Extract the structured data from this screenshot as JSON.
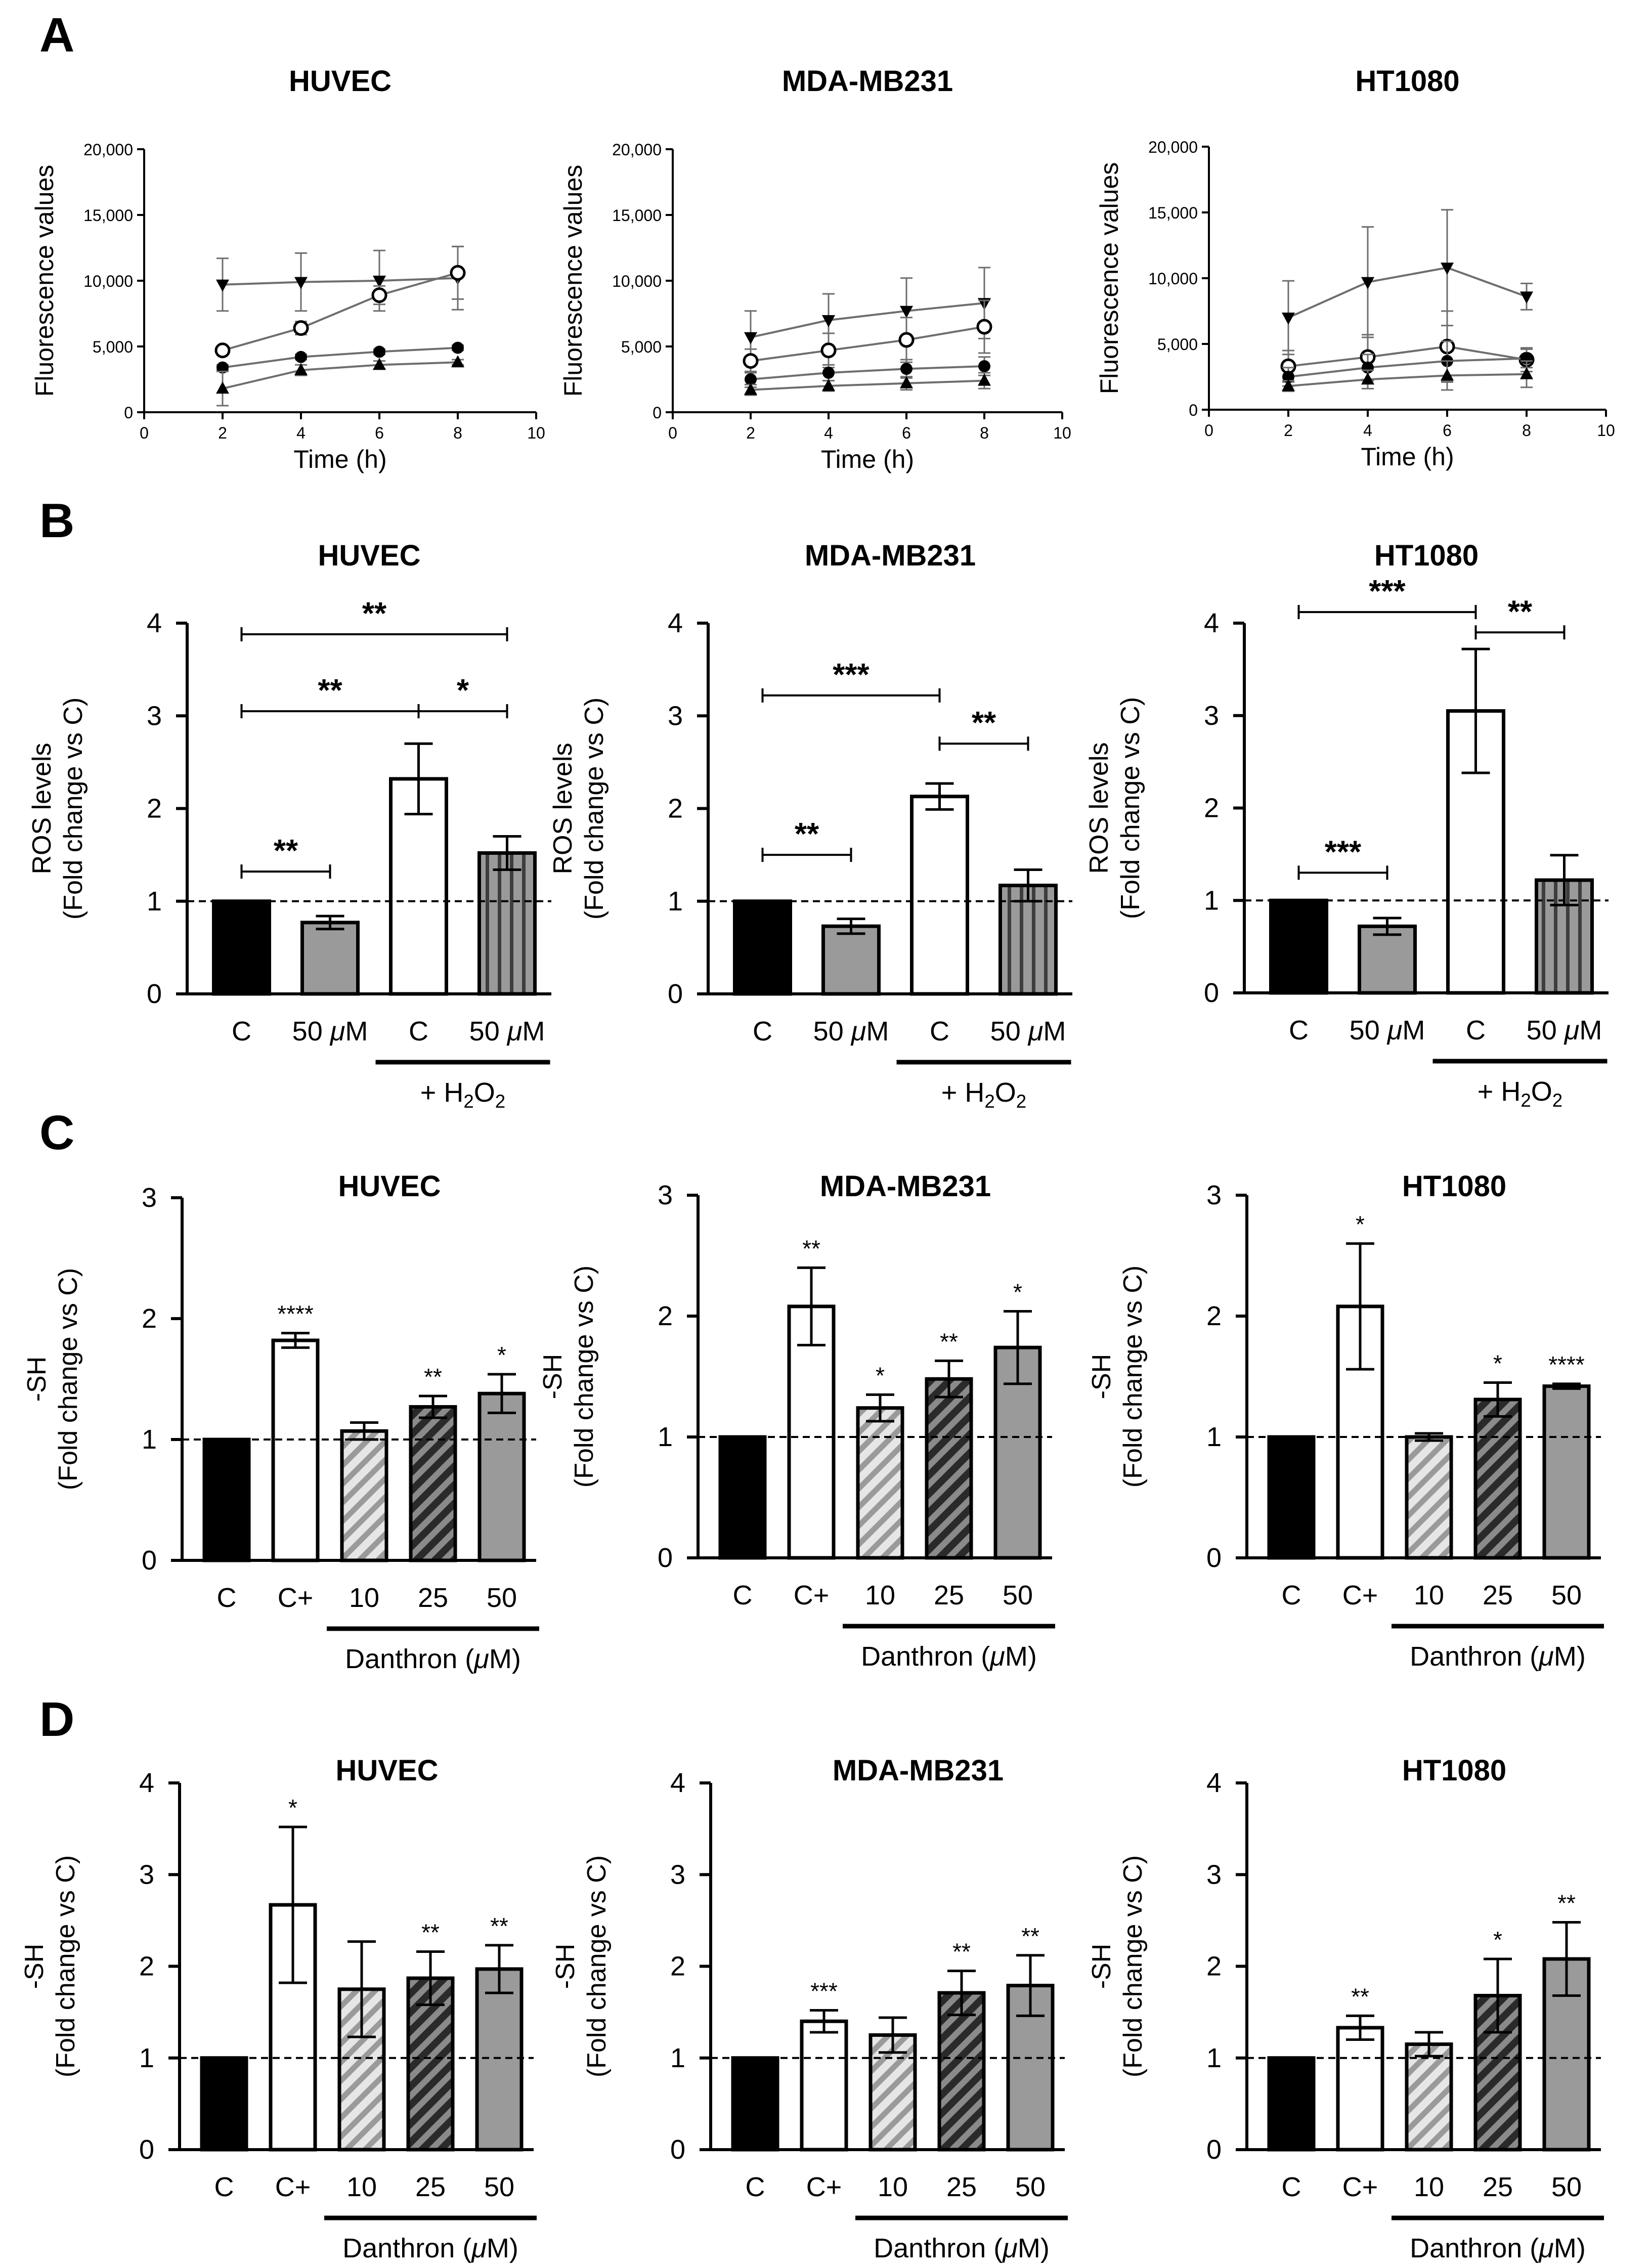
{
  "panel_letters": [
    "A",
    "B",
    "C",
    "D"
  ],
  "colors": {
    "black": "#000000",
    "gray": "#9a9a9a",
    "dark_gray": "#555555",
    "light_gray": "#cfcfcf",
    "line_gray": "#6e6e6e",
    "white": "#ffffff"
  },
  "chart_data": [
    {
      "panel": "A",
      "type": "line",
      "title": "HUVEC",
      "xlabel": "Time (h)",
      "ylabel": "Fluorescence values",
      "xlim": [
        0,
        10
      ],
      "ylim": [
        0,
        20000
      ],
      "xticks": [
        0,
        2,
        4,
        6,
        8,
        10
      ],
      "yticks": [
        0,
        5000,
        10000,
        15000,
        20000
      ],
      "ytick_labels": [
        "0",
        "5,000",
        "10,000",
        "15,000",
        "20,000"
      ],
      "x": [
        2,
        4,
        6,
        8
      ],
      "series": [
        {
          "marker": "triangle-down",
          "values": [
            9700,
            9900,
            10000,
            10200
          ],
          "errors": [
            2000,
            2200,
            2300,
            2400
          ]
        },
        {
          "marker": "circle-open",
          "values": [
            4700,
            6400,
            8900,
            10600
          ],
          "errors": [
            300,
            500,
            700,
            2000
          ]
        },
        {
          "marker": "circle",
          "values": [
            3400,
            4200,
            4600,
            4900
          ],
          "errors": [
            200,
            200,
            200,
            200
          ]
        },
        {
          "marker": "triangle-up",
          "values": [
            1800,
            3200,
            3600,
            3800
          ],
          "errors": [
            1300,
            400,
            300,
            200
          ]
        }
      ]
    },
    {
      "panel": "A",
      "type": "line",
      "title": "MDA-MB231",
      "xlabel": "Time (h)",
      "ylabel": "Fluorescence values",
      "xlim": [
        0,
        10
      ],
      "ylim": [
        0,
        20000
      ],
      "xticks": [
        0,
        2,
        4,
        6,
        8,
        10
      ],
      "yticks": [
        0,
        5000,
        10000,
        15000,
        20000
      ],
      "ytick_labels": [
        "0",
        "5,000",
        "10,000",
        "15,000",
        "20,000"
      ],
      "x": [
        2,
        4,
        6,
        8
      ],
      "series": [
        {
          "marker": "triangle-down",
          "values": [
            5700,
            7000,
            7700,
            8300
          ],
          "errors": [
            2000,
            2000,
            2500,
            2700
          ]
        },
        {
          "marker": "circle-open",
          "values": [
            3900,
            4700,
            5500,
            6500
          ],
          "errors": [
            900,
            1300,
            1700,
            2000
          ]
        },
        {
          "marker": "circle",
          "values": [
            2500,
            3000,
            3300,
            3500
          ],
          "errors": [
            600,
            600,
            700,
            700
          ]
        },
        {
          "marker": "triangle-up",
          "values": [
            1700,
            2000,
            2200,
            2400
          ],
          "errors": [
            400,
            400,
            500,
            600
          ]
        }
      ]
    },
    {
      "panel": "A",
      "type": "line",
      "title": "HT1080",
      "xlabel": "Time (h)",
      "ylabel": "Fluorescence values",
      "xlim": [
        0,
        10
      ],
      "ylim": [
        0,
        20000
      ],
      "xticks": [
        0,
        2,
        4,
        6,
        8,
        10
      ],
      "yticks": [
        0,
        5000,
        10000,
        15000,
        20000
      ],
      "ytick_labels": [
        "0",
        "5,000",
        "10,000",
        "15,000",
        "20,000"
      ],
      "x": [
        2,
        4,
        6,
        8
      ],
      "series": [
        {
          "marker": "triangle-down",
          "values": [
            7000,
            9700,
            10800,
            8600
          ],
          "errors": [
            2800,
            4200,
            4400,
            1000
          ]
        },
        {
          "marker": "circle-open",
          "values": [
            3300,
            4000,
            4800,
            3800
          ],
          "errors": [
            1200,
            1700,
            2700,
            900
          ]
        },
        {
          "marker": "circle",
          "values": [
            2500,
            3200,
            3700,
            3900
          ],
          "errors": [
            700,
            1000,
            1500,
            700
          ]
        },
        {
          "marker": "triangle-up",
          "values": [
            1800,
            2300,
            2600,
            2700
          ],
          "errors": [
            400,
            700,
            1100,
            1000
          ]
        }
      ]
    },
    {
      "panel": "B",
      "type": "bar",
      "title": "HUVEC",
      "ylabel": [
        "ROS levels",
        "(Fold change vs C)"
      ],
      "ylim": [
        0,
        4
      ],
      "yticks": [
        0,
        1,
        2,
        3,
        4
      ],
      "reference_line": 1,
      "categories": [
        "C",
        "50 μM",
        "C",
        "50 μM"
      ],
      "values": [
        1.0,
        0.77,
        2.32,
        1.52
      ],
      "errors": [
        0.0,
        0.07,
        0.38,
        0.18
      ],
      "fills": [
        "black",
        "gray",
        "white",
        "gray-vertical-stripes"
      ],
      "group_label": "+ H2O2",
      "group_bars": [
        2,
        3
      ],
      "brackets": [
        {
          "from": 0,
          "to": 1,
          "level": 1.32,
          "label": "**"
        },
        {
          "from": 0,
          "to": 2,
          "level": 3.05,
          "label": "**"
        },
        {
          "from": 2,
          "to": 3,
          "level": 3.05,
          "label": "*"
        },
        {
          "from": 0,
          "to": 3,
          "level": 3.88,
          "label": "**"
        }
      ]
    },
    {
      "panel": "B",
      "type": "bar",
      "title": "MDA-MB231",
      "ylabel": [
        "ROS levels",
        "(Fold change vs C)"
      ],
      "ylim": [
        0,
        4
      ],
      "yticks": [
        0,
        1,
        2,
        3,
        4
      ],
      "reference_line": 1,
      "categories": [
        "C",
        "50 μM",
        "C",
        "50 μM"
      ],
      "values": [
        1.0,
        0.73,
        2.13,
        1.17
      ],
      "errors": [
        0.0,
        0.08,
        0.14,
        0.17
      ],
      "fills": [
        "black",
        "gray",
        "white",
        "gray-vertical-stripes"
      ],
      "group_label": "+ H2O2",
      "group_bars": [
        2,
        3
      ],
      "brackets": [
        {
          "from": 0,
          "to": 1,
          "level": 1.5,
          "label": "**"
        },
        {
          "from": 0,
          "to": 2,
          "level": 3.22,
          "label": "***"
        },
        {
          "from": 2,
          "to": 3,
          "level": 2.7,
          "label": "**"
        }
      ]
    },
    {
      "panel": "B",
      "type": "bar",
      "title": "HT1080",
      "ylabel": [
        "ROS levels",
        "(Fold change vs C)"
      ],
      "ylim": [
        0,
        4
      ],
      "yticks": [
        0,
        1,
        2,
        3,
        4
      ],
      "reference_line": 1,
      "categories": [
        "C",
        "50 μM",
        "C",
        "50 μM"
      ],
      "values": [
        1.0,
        0.72,
        3.05,
        1.22
      ],
      "errors": [
        0.0,
        0.09,
        0.67,
        0.27
      ],
      "fills": [
        "black",
        "gray",
        "white",
        "gray-vertical-stripes"
      ],
      "group_label": "+ H2O2",
      "group_bars": [
        2,
        3
      ],
      "brackets": [
        {
          "from": 0,
          "to": 1,
          "level": 1.3,
          "label": "***"
        },
        {
          "from": 0,
          "to": 2,
          "level": 4.12,
          "label": "***"
        },
        {
          "from": 2,
          "to": 3,
          "level": 3.9,
          "label": "**"
        }
      ]
    },
    {
      "panel": "C",
      "type": "bar",
      "title": "HUVEC",
      "ylabel": [
        "-SH",
        "(Fold change vs C)"
      ],
      "ylim": [
        0,
        3
      ],
      "yticks": [
        0,
        1,
        2,
        3
      ],
      "reference_line": 1,
      "categories": [
        "C",
        "C+",
        "10",
        "25",
        "50"
      ],
      "values": [
        1.0,
        1.82,
        1.07,
        1.27,
        1.38
      ],
      "errors": [
        0.0,
        0.06,
        0.07,
        0.09,
        0.16
      ],
      "fills": [
        "black",
        "white",
        "light-hatch",
        "dark-hatch",
        "gray"
      ],
      "significance": [
        "",
        "****",
        "",
        "**",
        "*"
      ],
      "group_label": "Danthron (μM)",
      "group_bars": [
        2,
        4
      ]
    },
    {
      "panel": "C",
      "type": "bar",
      "title": "MDA-MB231",
      "ylabel": [
        "-SH",
        "(Fold change vs C)"
      ],
      "ylim": [
        0,
        3
      ],
      "yticks": [
        0,
        1,
        2,
        3
      ],
      "reference_line": 1,
      "categories": [
        "C",
        "C+",
        "10",
        "25",
        "50"
      ],
      "values": [
        1.0,
        2.08,
        1.24,
        1.48,
        1.74
      ],
      "errors": [
        0.0,
        0.32,
        0.11,
        0.15,
        0.3
      ],
      "fills": [
        "black",
        "white",
        "light-hatch",
        "dark-hatch",
        "gray"
      ],
      "significance": [
        "",
        "**",
        "*",
        "**",
        "*"
      ],
      "group_label": "Danthron (μM)",
      "group_bars": [
        2,
        4
      ]
    },
    {
      "panel": "C",
      "type": "bar",
      "title": "HT1080",
      "ylabel": [
        "-SH",
        "(Fold change vs C)"
      ],
      "ylim": [
        0,
        3
      ],
      "yticks": [
        0,
        1,
        2,
        3
      ],
      "reference_line": 1,
      "categories": [
        "C",
        "C+",
        "10",
        "25",
        "50"
      ],
      "values": [
        1.0,
        2.08,
        1.0,
        1.31,
        1.42
      ],
      "errors": [
        0.0,
        0.52,
        0.03,
        0.14,
        0.02
      ],
      "fills": [
        "black",
        "white",
        "light-hatch",
        "dark-hatch",
        "gray"
      ],
      "significance": [
        "",
        "*",
        "",
        "*",
        "****"
      ],
      "group_label": "Danthron (μM)",
      "group_bars": [
        2,
        4
      ]
    },
    {
      "panel": "D",
      "type": "bar",
      "title": "HUVEC",
      "ylabel": [
        "-SH",
        "(Fold change vs C)"
      ],
      "ylim": [
        0,
        4
      ],
      "yticks": [
        0,
        1,
        2,
        3,
        4
      ],
      "reference_line": 1,
      "categories": [
        "C",
        "C+",
        "10",
        "25",
        "50"
      ],
      "values": [
        1.0,
        2.67,
        1.75,
        1.87,
        1.97
      ],
      "errors": [
        0.0,
        0.85,
        0.52,
        0.29,
        0.26
      ],
      "fills": [
        "black",
        "white",
        "light-hatch",
        "dark-hatch",
        "gray"
      ],
      "significance": [
        "",
        "*",
        "",
        "**",
        "**"
      ],
      "group_label": "Danthron (μM)",
      "group_bars": [
        2,
        4
      ]
    },
    {
      "panel": "D",
      "type": "bar",
      "title": "MDA-MB231",
      "ylabel": [
        "-SH",
        "(Fold change vs C)"
      ],
      "ylim": [
        0,
        4
      ],
      "yticks": [
        0,
        1,
        2,
        3,
        4
      ],
      "reference_line": 1,
      "categories": [
        "C",
        "C+",
        "10",
        "25",
        "50"
      ],
      "values": [
        1.0,
        1.4,
        1.25,
        1.71,
        1.79
      ],
      "errors": [
        0.0,
        0.12,
        0.19,
        0.24,
        0.33
      ],
      "fills": [
        "black",
        "white",
        "light-hatch",
        "dark-hatch",
        "gray"
      ],
      "significance": [
        "",
        "***",
        "",
        "**",
        "**"
      ],
      "group_label": "Danthron (μM)",
      "group_bars": [
        2,
        4
      ]
    },
    {
      "panel": "D",
      "type": "bar",
      "title": "HT1080",
      "ylabel": [
        "-SH",
        "(Fold change vs C)"
      ],
      "ylim": [
        0,
        4
      ],
      "yticks": [
        0,
        1,
        2,
        3,
        4
      ],
      "reference_line": 1,
      "categories": [
        "C",
        "C+",
        "10",
        "25",
        "50"
      ],
      "values": [
        1.0,
        1.33,
        1.15,
        1.68,
        2.08
      ],
      "errors": [
        0.0,
        0.13,
        0.13,
        0.4,
        0.4
      ],
      "fills": [
        "black",
        "white",
        "light-hatch",
        "dark-hatch",
        "gray"
      ],
      "significance": [
        "",
        "**",
        "",
        "*",
        "**"
      ],
      "group_label": "Danthron (μM)",
      "group_bars": [
        2,
        4
      ]
    }
  ]
}
